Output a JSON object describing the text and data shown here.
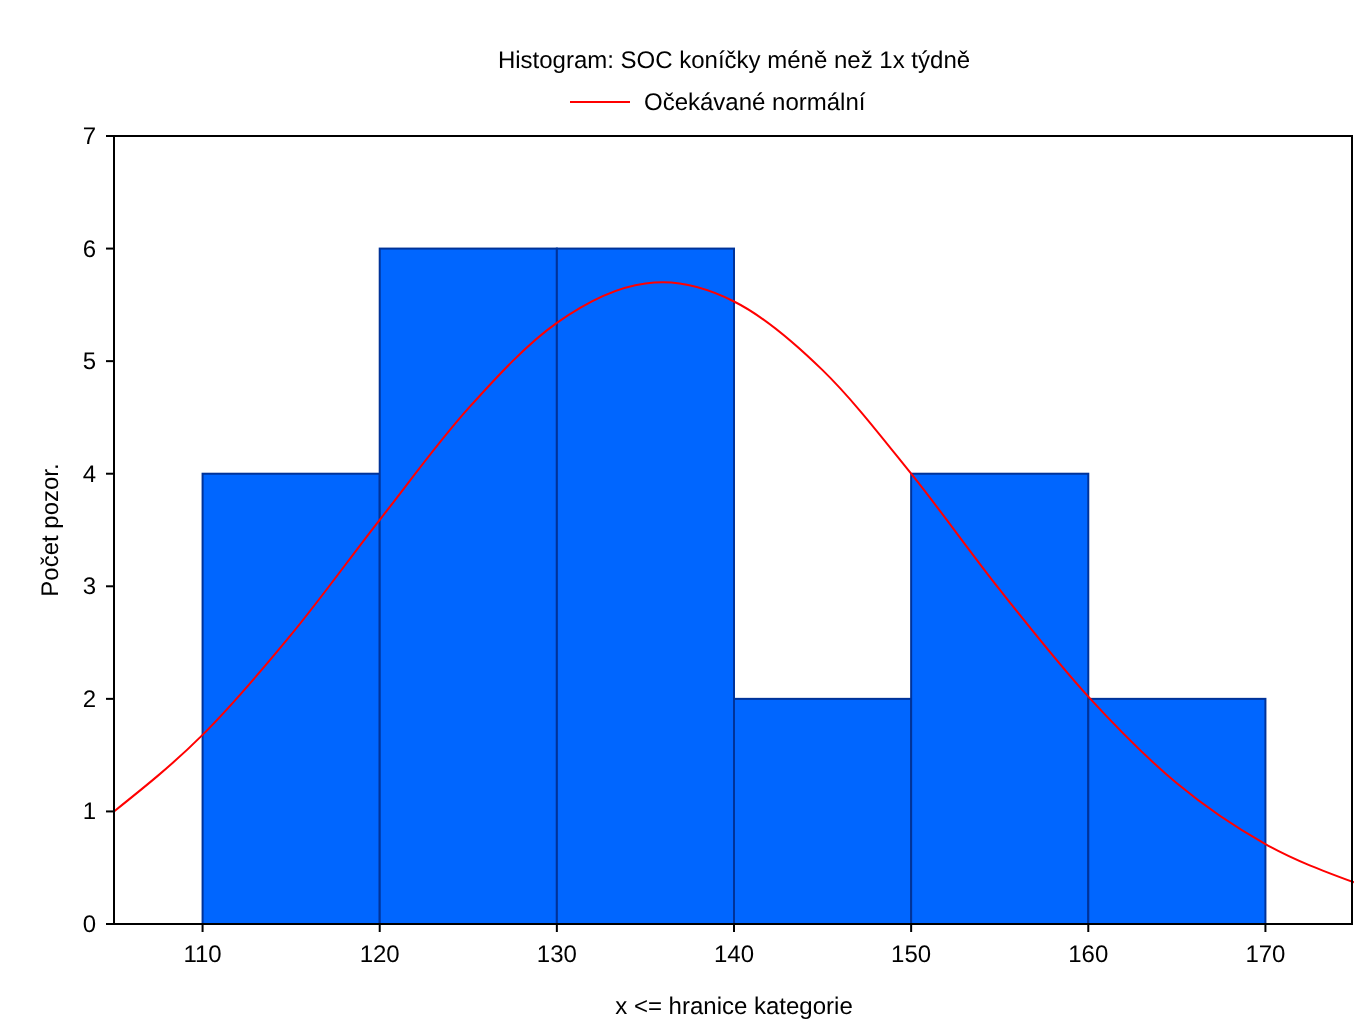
{
  "chart_data": {
    "type": "histogram",
    "title": "Histogram: SOC koníčky méně než 1x týdně",
    "xlabel": "x <= hranice kategorie",
    "ylabel": "Počet pozor.",
    "bins": [
      110,
      120,
      130,
      140,
      150,
      160,
      170
    ],
    "values": [
      4,
      6,
      6,
      2,
      4,
      2
    ],
    "color": "#0066ff",
    "series": [
      {
        "name": "Očekávané normální",
        "type": "line",
        "color": "#ff0000",
        "x": [
          105,
          110,
          115,
          120,
          125,
          130,
          135,
          136,
          140,
          145,
          150,
          155,
          160,
          165,
          170,
          175
        ],
        "values": [
          1.0,
          1.68,
          2.57,
          3.59,
          4.58,
          5.34,
          5.69,
          5.7,
          5.53,
          4.92,
          4.0,
          2.97,
          2.02,
          1.25,
          0.71,
          0.37
        ]
      }
    ],
    "xlim": [
      105,
      175
    ],
    "ylim": [
      0,
      7
    ],
    "xticks": [
      110,
      120,
      130,
      140,
      150,
      160,
      170
    ],
    "yticks": [
      0,
      1,
      2,
      3,
      4,
      5,
      6,
      7
    ],
    "legend": "top",
    "grid": false
  }
}
